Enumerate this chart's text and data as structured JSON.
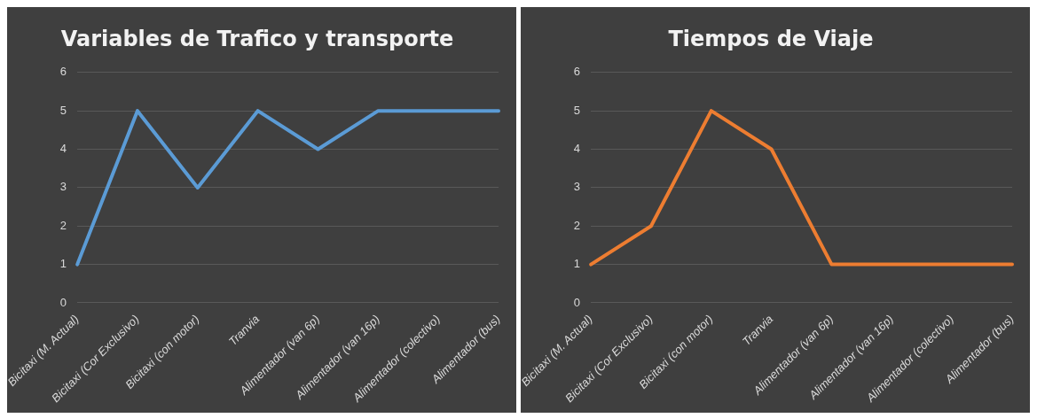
{
  "chart_data": [
    {
      "type": "line",
      "title": "Variables de Trafico y transporte",
      "categories": [
        "Bicitaxi (M. Actual)",
        "Bicitaxi (Cor Exclusivo)",
        "Bicitaxi (con motor)",
        "Tranvia",
        "Alimentador (van 6p)",
        "Alimentador (van 16p)",
        "Alimentador (colectivo)",
        "Alimentador (bus)"
      ],
      "series": [
        {
          "color": "#5b9bd5",
          "values": [
            1,
            5,
            3,
            5,
            4,
            5,
            5,
            5
          ]
        }
      ],
      "ylim": [
        0,
        6
      ],
      "yticks": [
        0,
        1,
        2,
        3,
        4,
        5,
        6
      ],
      "grid": "y",
      "legend": false,
      "marker": "none",
      "line_style": "solid"
    },
    {
      "type": "line",
      "title": "Tiempos de Viaje",
      "categories": [
        "Bicitaxi (M. Actual)",
        "Bicitaxi (Cor Exclusivo)",
        "Bicitaxi (con motor)",
        "Tranvia",
        "Alimentador (van 6p)",
        "Alimentador (van 16p)",
        "Alimentador (colectivo)",
        "Alimentador (bus)"
      ],
      "series": [
        {
          "color": "#ed7d31",
          "values": [
            1,
            2,
            5,
            4,
            1,
            1,
            1,
            1
          ]
        }
      ],
      "ylim": [
        0,
        6
      ],
      "yticks": [
        0,
        1,
        2,
        3,
        4,
        5,
        6
      ],
      "grid": "y",
      "legend": false,
      "marker": "none",
      "line_style": "solid"
    }
  ]
}
